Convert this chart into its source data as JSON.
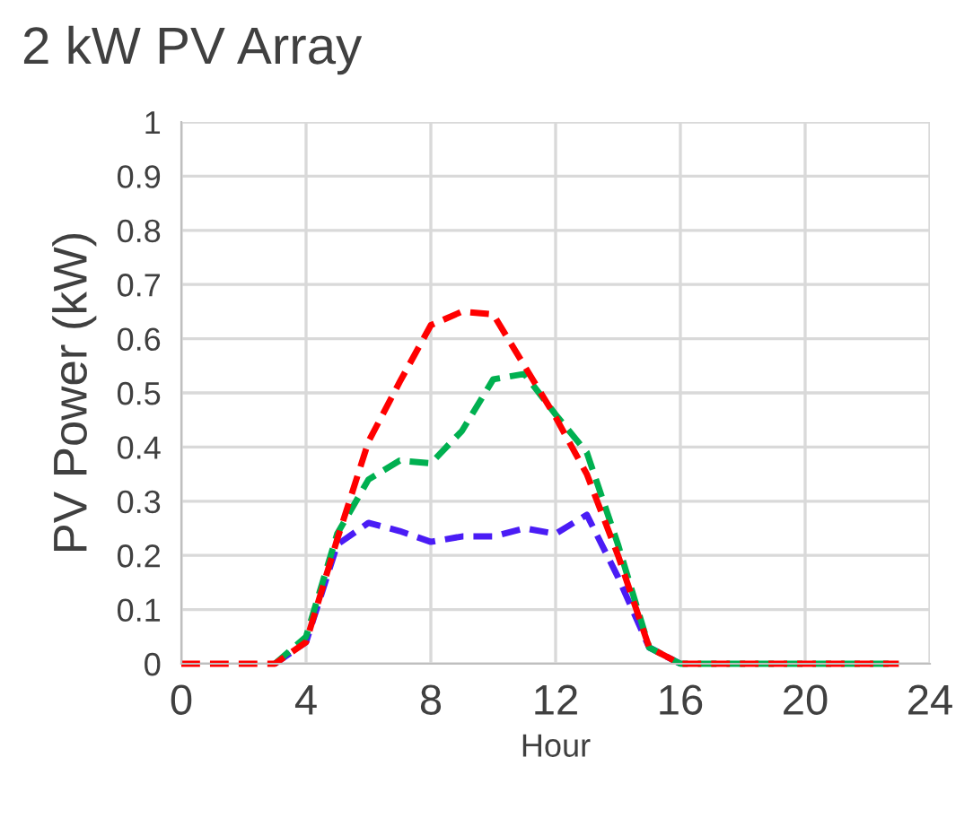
{
  "chart_data": {
    "type": "line",
    "title": "2 kW PV Array",
    "xlabel": "Hour",
    "ylabel": "PV Power (kW)",
    "x": [
      0,
      1,
      2,
      3,
      4,
      5,
      6,
      7,
      8,
      9,
      10,
      11,
      12,
      13,
      14,
      15,
      16,
      17,
      18,
      19,
      20,
      21,
      22,
      23
    ],
    "series": [
      {
        "color": "#4a1cf5",
        "values": [
          null,
          null,
          null,
          0,
          0.04,
          0.22,
          0.26,
          0.245,
          0.225,
          0.235,
          0.235,
          0.25,
          0.24,
          0.275,
          0.16,
          0.03,
          0,
          null,
          null,
          null,
          null,
          null,
          null,
          null
        ]
      },
      {
        "color": "#00b050",
        "values": [
          null,
          null,
          null,
          0,
          0.05,
          0.24,
          0.34,
          0.375,
          0.37,
          0.43,
          0.525,
          0.535,
          0.46,
          0.39,
          0.22,
          0.03,
          0,
          0,
          0,
          0,
          0,
          0,
          0,
          0
        ]
      },
      {
        "color": "#ff0000",
        "values": [
          0,
          0,
          0,
          0,
          0.04,
          0.23,
          0.41,
          0.52,
          0.625,
          0.65,
          0.645,
          0.55,
          0.455,
          0.35,
          0.2,
          0.03,
          0,
          0,
          0,
          0,
          0,
          0,
          0,
          0
        ]
      }
    ],
    "xlim": [
      0,
      24
    ],
    "xticks": [
      0,
      4,
      8,
      12,
      16,
      20,
      24
    ],
    "ylim": [
      0,
      1
    ],
    "yticks": [
      0,
      0.1,
      0.2,
      0.3,
      0.4,
      0.5,
      0.6,
      0.7,
      0.8,
      0.9,
      1
    ],
    "grid": true,
    "marker": "none",
    "line_style": "dashed"
  }
}
